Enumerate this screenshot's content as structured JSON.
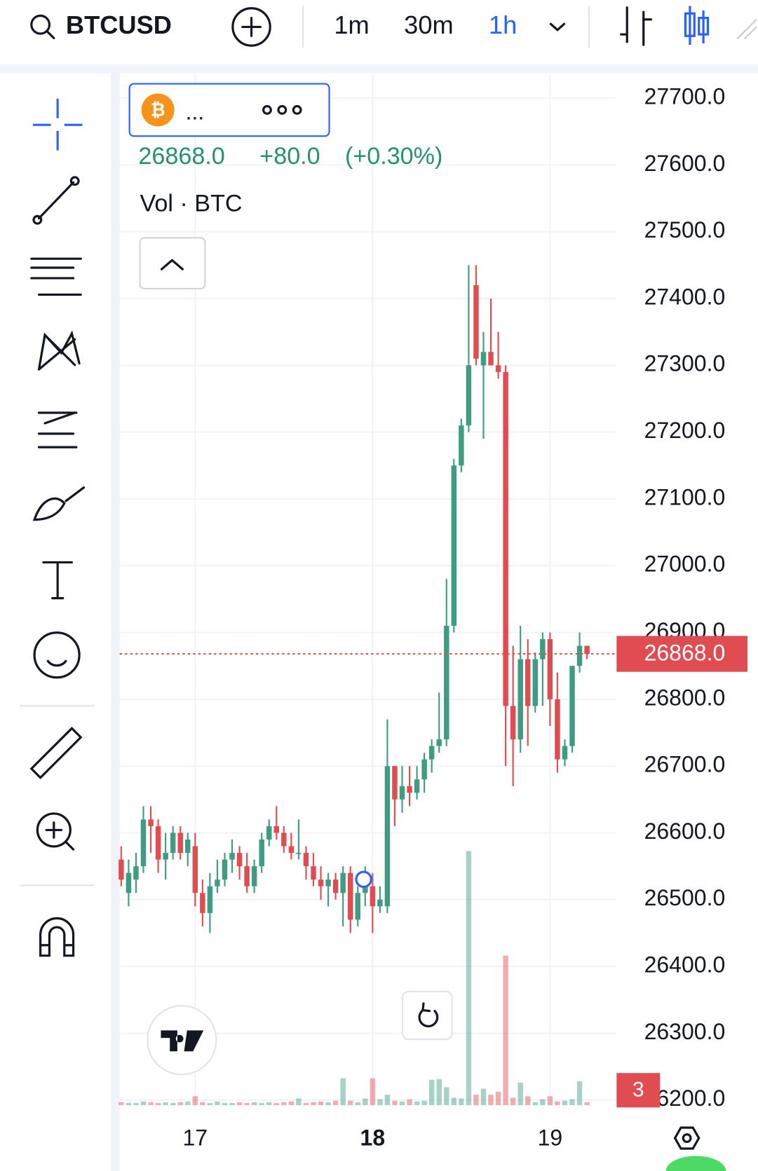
{
  "header": {
    "symbol": "BTCUSD",
    "intervals": [
      "1m",
      "30m",
      "1h"
    ]
  },
  "legend": {
    "name": "...",
    "price": "26868.0",
    "change": "+80.0",
    "change_pct": "(+0.30%)",
    "volume": "Vol · BTC"
  },
  "chart_data": {
    "type": "candlestick",
    "categories": [
      null,
      null,
      null,
      null,
      null,
      null,
      null,
      null,
      null,
      null,
      "17",
      null,
      null,
      null,
      null,
      null,
      null,
      null,
      null,
      null,
      null,
      null,
      null,
      null,
      null,
      null,
      null,
      null,
      null,
      null,
      null,
      null,
      null,
      null,
      "18",
      null,
      null,
      null,
      null,
      null,
      null,
      null,
      null,
      null,
      null,
      null,
      null,
      null,
      null,
      null,
      null,
      null,
      null,
      null,
      null,
      null,
      null,
      null,
      "19",
      null,
      null,
      null,
      null,
      null
    ],
    "open": [
      26560,
      26510,
      26530,
      26550,
      26620,
      26610,
      26560,
      26570,
      26600,
      26570,
      26580,
      26510,
      26480,
      26520,
      26530,
      26560,
      26570,
      26550,
      26520,
      26550,
      26590,
      26610,
      26600,
      26580,
      26570,
      26570,
      26550,
      26530,
      26520,
      26530,
      26510,
      26540,
      26470,
      26510,
      26520,
      26490,
      26490,
      26700,
      26650,
      26670,
      26660,
      26680,
      26710,
      26730,
      26740,
      26910,
      27150,
      27210,
      27420,
      27300,
      27320,
      27300,
      27290,
      26790,
      26740,
      26860,
      26790,
      26860,
      26890,
      26800,
      26710,
      26730,
      26850,
      26880
    ],
    "high": [
      26580,
      26560,
      26570,
      26640,
      26640,
      26620,
      26600,
      26610,
      26610,
      26600,
      26600,
      26530,
      26540,
      26560,
      26570,
      26590,
      26580,
      26570,
      26560,
      26600,
      26620,
      26640,
      26610,
      26600,
      26620,
      26580,
      26570,
      26550,
      26540,
      26540,
      26550,
      26550,
      26520,
      26550,
      26540,
      26520,
      26770,
      26700,
      26700,
      26700,
      26700,
      26720,
      26740,
      26810,
      26980,
      27160,
      27220,
      27450,
      27450,
      27350,
      27400,
      27350,
      27300,
      26880,
      26910,
      26890,
      26870,
      26900,
      26900,
      26840,
      26740,
      26850,
      26900,
      26880
    ],
    "low": [
      26520,
      26490,
      26510,
      26540,
      26570,
      26540,
      26530,
      26560,
      26560,
      26550,
      26490,
      26460,
      26450,
      26510,
      26520,
      26540,
      26530,
      26510,
      26510,
      26540,
      26580,
      26590,
      26570,
      26560,
      26560,
      26530,
      26520,
      26500,
      26490,
      26500,
      26460,
      26450,
      26460,
      26490,
      26450,
      26480,
      26480,
      26610,
      26630,
      26640,
      26650,
      26660,
      26690,
      26720,
      26730,
      26900,
      27140,
      27200,
      27300,
      27190,
      27300,
      27280,
      26700,
      26670,
      26720,
      26730,
      26780,
      26790,
      26760,
      26690,
      26700,
      26720,
      26840,
      26860
    ],
    "close": [
      26530,
      26540,
      26550,
      26620,
      26610,
      26560,
      26570,
      26600,
      26570,
      26590,
      26510,
      26480,
      26520,
      26530,
      26560,
      26570,
      26550,
      26520,
      26550,
      26590,
      26610,
      26600,
      26580,
      26570,
      26570,
      26550,
      26530,
      26520,
      26530,
      26510,
      26540,
      26470,
      26510,
      26520,
      26490,
      26500,
      26700,
      26650,
      26670,
      26660,
      26680,
      26710,
      26730,
      26740,
      26910,
      27150,
      27210,
      27300,
      27310,
      27320,
      27300,
      27290,
      26790,
      26740,
      26860,
      26790,
      26860,
      26890,
      26800,
      26710,
      26730,
      26850,
      26880,
      26868
    ],
    "volume": [
      4,
      3,
      3,
      5,
      4,
      3,
      4,
      3,
      4,
      5,
      12,
      4,
      3,
      5,
      3,
      3,
      4,
      3,
      4,
      3,
      4,
      3,
      4,
      5,
      9,
      3,
      4,
      5,
      4,
      6,
      36,
      6,
      4,
      9,
      36,
      8,
      14,
      6,
      5,
      8,
      5,
      6,
      34,
      35,
      24,
      10,
      9,
      340,
      14,
      22,
      14,
      18,
      200,
      10,
      30,
      12,
      4,
      8,
      12,
      5,
      6,
      8,
      32,
      4
    ],
    "up_color": "#3d9c82",
    "down_color": "#e04c4f",
    "ylim": [
      26190,
      27735
    ],
    "yticks": [
      {
        "value": 26200,
        "label": "26200.0"
      },
      {
        "value": 26300,
        "label": "26300.0"
      },
      {
        "value": 26400,
        "label": "26400.0"
      },
      {
        "value": 26500,
        "label": "26500.0"
      },
      {
        "value": 26600,
        "label": "26600.0"
      },
      {
        "value": 26700,
        "label": "26700.0"
      },
      {
        "value": 26800,
        "label": "26800.0"
      },
      {
        "value": 26900,
        "label": "26900.0"
      },
      {
        "value": 27000,
        "label": "27000.0"
      },
      {
        "value": 27100,
        "label": "27100.0"
      },
      {
        "value": 27200,
        "label": "27200.0"
      },
      {
        "value": 27300,
        "label": "27300.0"
      },
      {
        "value": 27400,
        "label": "27400.0"
      },
      {
        "value": 27500,
        "label": "27500.0"
      },
      {
        "value": 27600,
        "label": "27600.0"
      },
      {
        "value": 27700,
        "label": "27700.0"
      }
    ],
    "last_price": {
      "value": 26868,
      "label": "26868.0"
    },
    "badge": "3",
    "grid": true
  }
}
